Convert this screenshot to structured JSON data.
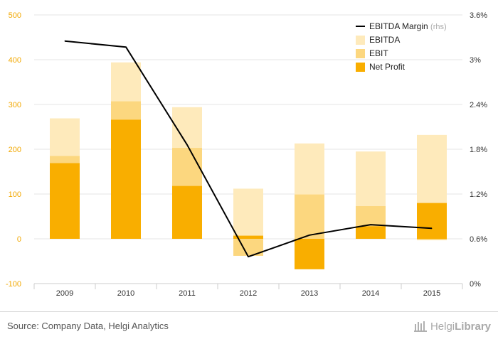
{
  "chart_data": {
    "type": "bar",
    "categories": [
      "2009",
      "2010",
      "2011",
      "2012",
      "2013",
      "2014",
      "2015"
    ],
    "series": [
      {
        "name": "EBITDA",
        "kind": "bar",
        "color": "#FEEABB",
        "values": [
          269,
          394,
          294,
          112,
          213,
          195,
          232
        ]
      },
      {
        "name": "EBIT",
        "kind": "bar",
        "color": "#FCD77F",
        "values": [
          185,
          307,
          203,
          -38,
          99,
          73,
          -3
        ]
      },
      {
        "name": "Net Profit",
        "kind": "bar",
        "color": "#F9AE00",
        "values": [
          169,
          266,
          118,
          7,
          -68,
          28,
          80
        ]
      },
      {
        "name": "EBITDA Margin",
        "name_suffix": "(rhs)",
        "kind": "line",
        "axis": "right",
        "color": "#000000",
        "values": [
          3.25,
          3.17,
          1.86,
          0.36,
          0.65,
          0.79,
          0.74
        ]
      }
    ],
    "ylim": [
      -100,
      500
    ],
    "yticks": [
      500,
      400,
      300,
      200,
      100,
      0,
      -100
    ],
    "y2lim": [
      0,
      3.6
    ],
    "y2ticks": [
      "3.6%",
      "3%",
      "2.4%",
      "1.8%",
      "1.2%",
      "0.6%",
      "0%"
    ],
    "grid": true,
    "legend": "top-right",
    "left_axis_color": "#F2A800"
  },
  "footer": {
    "source": "Source: Company Data, Helgi Analytics",
    "brand_name": "Helgi",
    "brand_sub": "Library"
  }
}
